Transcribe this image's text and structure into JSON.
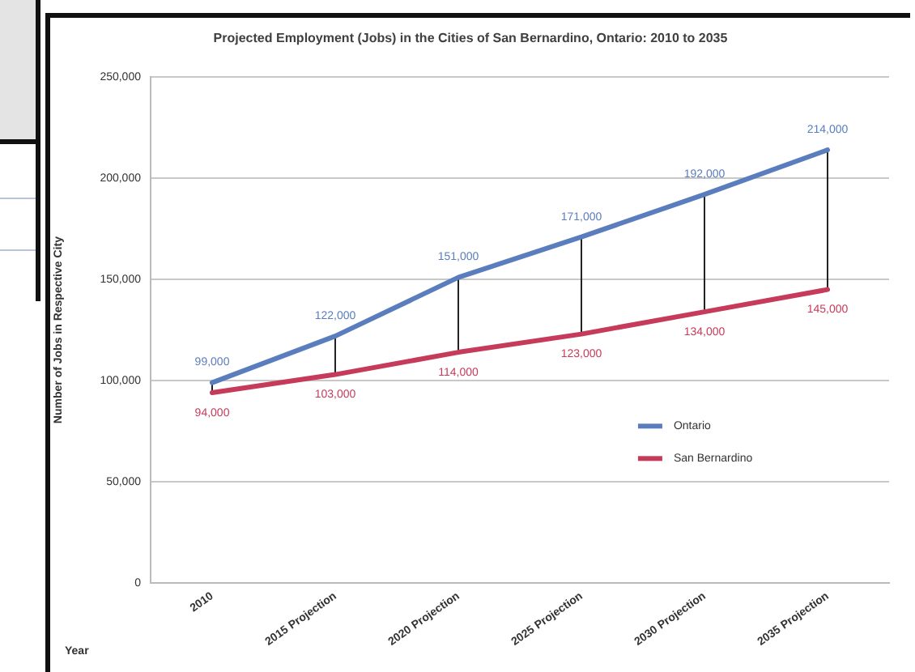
{
  "chart_data": {
    "type": "line",
    "title": "Projected Employment (Jobs) in the Cities of San Bernardino, Ontario: 2010 to 2035",
    "xlabel": "Year",
    "ylabel": "Number of Jobs in Respective City",
    "categories": [
      "2010",
      "2015 Projection",
      "2020 Projection",
      "2025 Projection",
      "2030 Projection",
      "2035 Projection"
    ],
    "series": [
      {
        "name": "Ontario",
        "color": "#5a7dbd",
        "values": [
          99000,
          122000,
          151000,
          171000,
          192000,
          214000
        ],
        "value_labels": [
          "99,000",
          "122,000",
          "151,000",
          "171,000",
          "192,000",
          "214,000"
        ]
      },
      {
        "name": "San Bernardino",
        "color": "#c63b5a",
        "values": [
          94000,
          103000,
          114000,
          123000,
          134000,
          145000
        ],
        "value_labels": [
          "94,000",
          "103,000",
          "114,000",
          "123,000",
          "134,000",
          "145,000"
        ]
      }
    ],
    "ylim": [
      0,
      250000
    ],
    "yticks": [
      0,
      {
        "value": 50000,
        "label": "50,000"
      },
      {
        "value": 100000,
        "label": "100,000"
      },
      {
        "value": 150000,
        "label": "150,000"
      },
      {
        "value": 200000,
        "label": "200,000"
      },
      {
        "value": 250000,
        "label": "250,000"
      }
    ],
    "grid": "y",
    "legend": "right",
    "marker": "none",
    "line_style": "solid"
  }
}
